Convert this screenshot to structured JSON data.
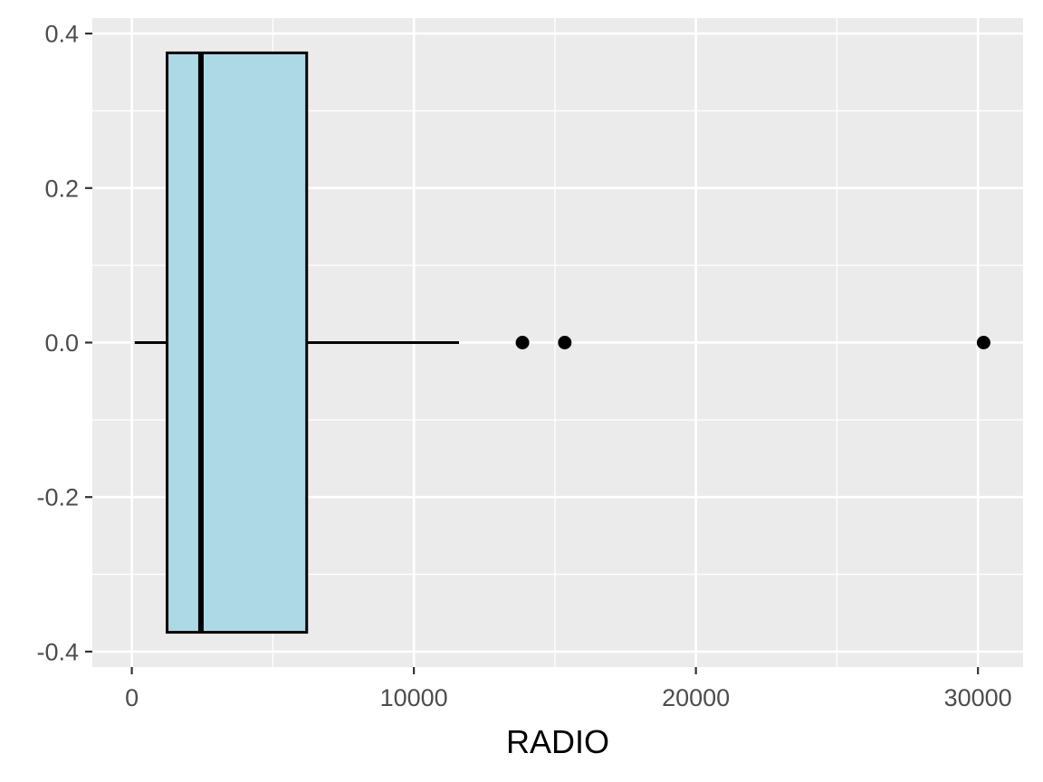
{
  "chart_data": {
    "type": "boxplot",
    "orientation": "horizontal",
    "xlabel": "RADIO",
    "ylabel": "",
    "xlim": [
      -1400,
      31600
    ],
    "ylim": [
      -0.42,
      0.42
    ],
    "x_ticks": [
      0,
      10000,
      20000,
      30000
    ],
    "x_tick_labels": [
      "0",
      "10000",
      "20000",
      "30000"
    ],
    "x_minor_ticks": [
      5000,
      15000,
      25000
    ],
    "y_ticks": [
      -0.4,
      -0.2,
      0.0,
      0.2,
      0.4
    ],
    "y_tick_labels": [
      "-0.4",
      "-0.2",
      "0.0",
      "0.2",
      "0.4"
    ],
    "y_minor_ticks": [
      -0.3,
      -0.1,
      0.1,
      0.3
    ],
    "box": {
      "y_center": 0.0,
      "y_half_width": 0.375,
      "whisker_low": 100,
      "q1": 1250,
      "median": 2450,
      "q3": 6200,
      "whisker_high": 11600
    },
    "outliers": [
      13850,
      15350,
      30200
    ],
    "grid": true,
    "legend": "none",
    "colors": {
      "panel_background": "#ebebeb",
      "grid_line": "#ffffff",
      "box_fill": "#add8e6",
      "box_stroke": "#000000",
      "outlier": "#000000",
      "tick_label": "#4d4d4d",
      "axis_title": "#000000",
      "tick_mark": "#333333"
    }
  }
}
